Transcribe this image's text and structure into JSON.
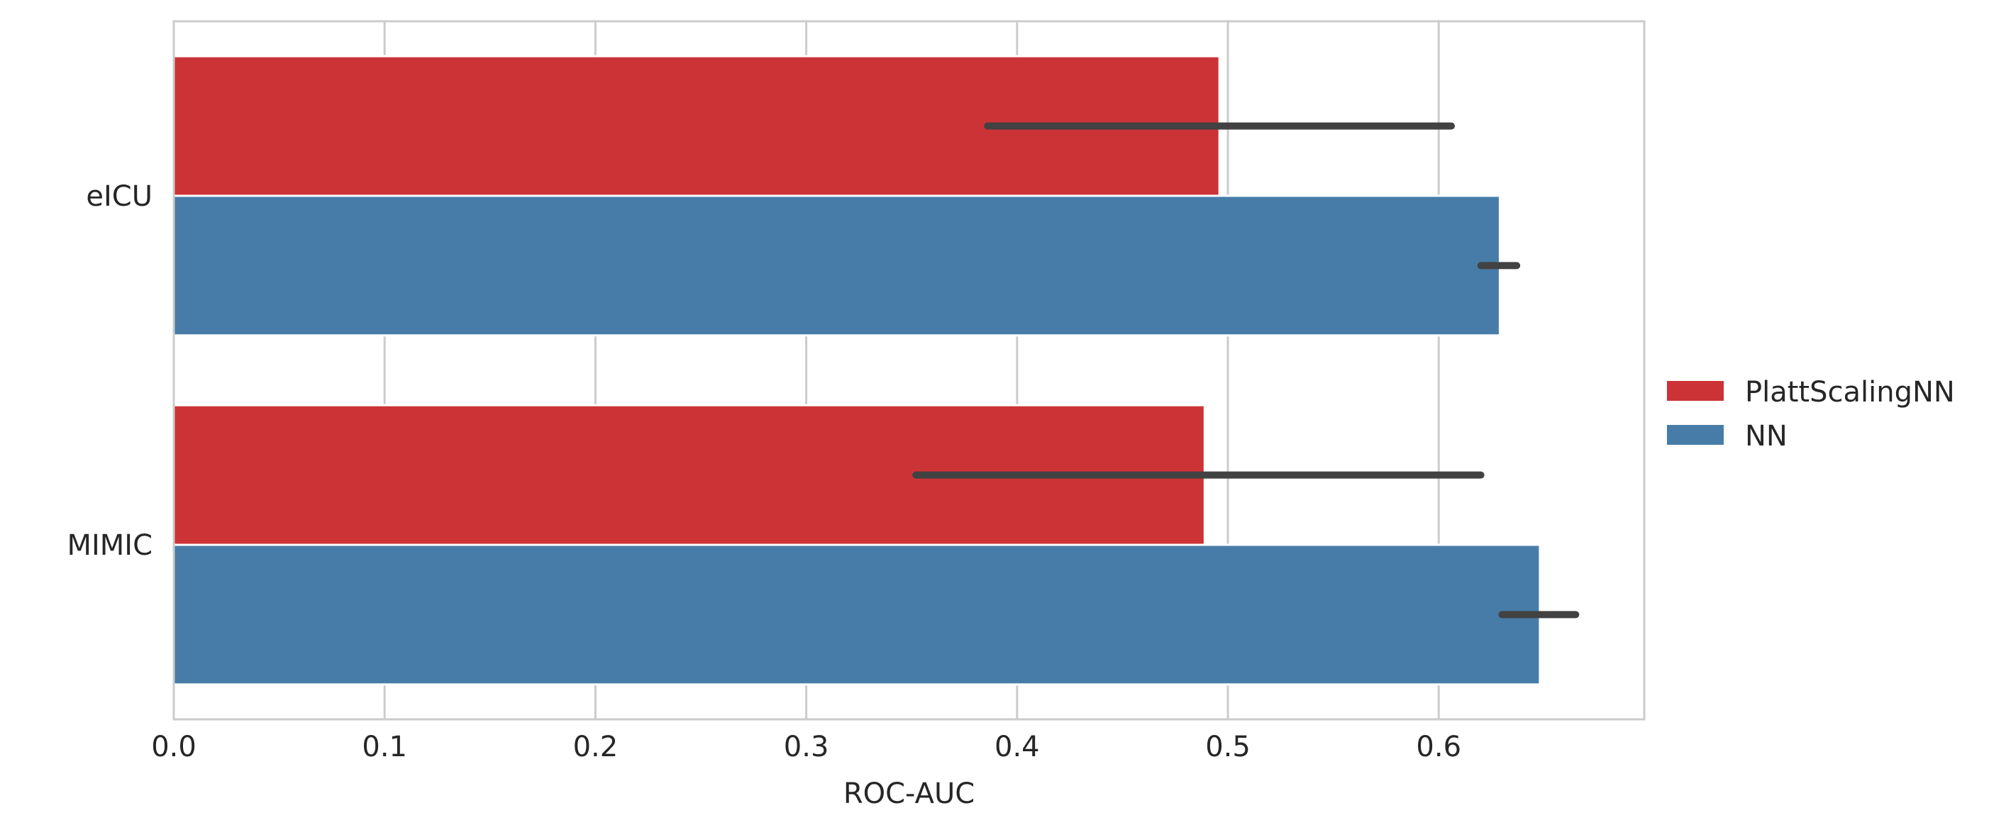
{
  "chart_data": {
    "type": "bar",
    "orientation": "horizontal",
    "categories": [
      "eICU",
      "MIMIC"
    ],
    "series": [
      {
        "name": "PlattScalingNN",
        "color": "#cc3336",
        "values": [
          0.496,
          0.489
        ],
        "error_low": [
          0.386,
          0.352
        ],
        "error_high": [
          0.606,
          0.62
        ]
      },
      {
        "name": "NN",
        "color": "#477ca8",
        "values": [
          0.629,
          0.648
        ],
        "error_low": [
          0.62,
          0.63
        ],
        "error_high": [
          0.637,
          0.665
        ]
      }
    ],
    "xlabel": "ROC-AUC",
    "ylabel": "",
    "xlim": [
      0,
      0.6975
    ],
    "xticks": [
      "0.0",
      "0.1",
      "0.2",
      "0.3",
      "0.4",
      "0.5",
      "0.6"
    ],
    "grid": true,
    "legend": "right",
    "error_bar_color": "#424242"
  }
}
